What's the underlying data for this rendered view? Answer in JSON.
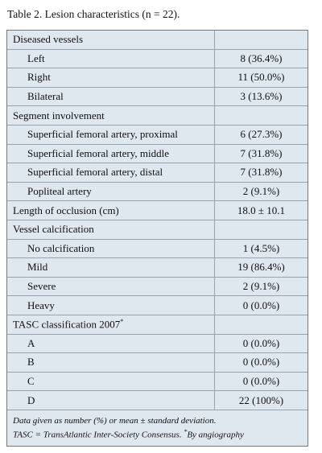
{
  "title": "Table 2. Lesion characteristics (n = 22).",
  "table": {
    "rows": [
      {
        "label": "Diseased vessels",
        "items": [
          {
            "label": "Left",
            "value": "8 (36.4%)"
          },
          {
            "label": "Right",
            "value": "11 (50.0%)"
          },
          {
            "label": "Bilateral",
            "value": "3 (13.6%)"
          }
        ]
      },
      {
        "label": "Segment involvement",
        "items": [
          {
            "label": "Superficial femoral artery, proximal",
            "value": "6 (27.3%)"
          },
          {
            "label": "Superficial femoral artery, middle",
            "value": "7 (31.8%)"
          },
          {
            "label": "Superficial femoral artery, distal",
            "value": "7 (31.8%)"
          },
          {
            "label": "Popliteal artery",
            "value": "2 (9.1%)"
          }
        ]
      },
      {
        "label": "Length of occlusion (cm)",
        "value": "18.0 ± 10.1"
      },
      {
        "label": "Vessel calcification",
        "items": [
          {
            "label": "No calcification",
            "value": "1 (4.5%)"
          },
          {
            "label": "Mild",
            "value": "19 (86.4%)"
          },
          {
            "label": "Severe",
            "value": "2 (9.1%)"
          },
          {
            "label": "Heavy",
            "value": "0 (0.0%)"
          }
        ]
      },
      {
        "label": "TASC classification 2007",
        "sup": "*",
        "items": [
          {
            "label": "A",
            "value": "0 (0.0%)"
          },
          {
            "label": "B",
            "value": "0 (0.0%)"
          },
          {
            "label": "C",
            "value": "0 (0.0%)"
          },
          {
            "label": "D",
            "value": "22 (100%)"
          }
        ]
      }
    ]
  },
  "footnote": {
    "line1": "Data given as number (%) or mean ± standard deviation.",
    "line2": "TASC = TransAtlantic Inter-Society Consensus. ",
    "sup": "*",
    "line2_end": "By angiography"
  }
}
